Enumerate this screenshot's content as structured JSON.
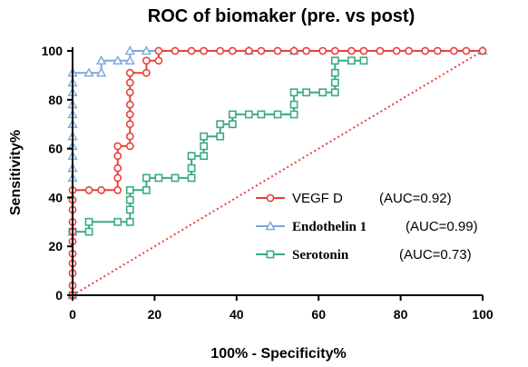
{
  "chart_data": {
    "type": "line",
    "title": "ROC of biomaker (pre. vs post)",
    "xlabel": "100% - Specificity%",
    "ylabel": "Sensitivity%",
    "xlim": [
      0,
      100
    ],
    "ylim": [
      0,
      100
    ],
    "xticks": [
      "0",
      "20",
      "40",
      "60",
      "80",
      "100"
    ],
    "yticks": [
      "0",
      "20",
      "40",
      "60",
      "80",
      "100"
    ],
    "grid": false,
    "legend_position": "bottom-right",
    "reference_line": {
      "x": [
        0,
        100
      ],
      "y": [
        0,
        100
      ],
      "style": "dotted",
      "color": "#e8413c"
    },
    "series": [
      {
        "name": "VEGF D",
        "auc_label": "(AUC=0.92)",
        "color": "#e8413c",
        "marker": "circle",
        "points": [
          [
            0,
            0
          ],
          [
            0,
            4
          ],
          [
            0,
            9
          ],
          [
            0,
            13
          ],
          [
            0,
            17
          ],
          [
            0,
            22
          ],
          [
            0,
            26
          ],
          [
            0,
            30
          ],
          [
            0,
            35
          ],
          [
            0,
            39
          ],
          [
            0,
            43
          ],
          [
            4,
            43
          ],
          [
            7,
            43
          ],
          [
            11,
            43
          ],
          [
            11,
            48
          ],
          [
            11,
            52
          ],
          [
            11,
            57
          ],
          [
            11,
            61
          ],
          [
            14,
            61
          ],
          [
            14,
            65
          ],
          [
            14,
            70
          ],
          [
            14,
            74
          ],
          [
            14,
            78
          ],
          [
            14,
            83
          ],
          [
            14,
            87
          ],
          [
            14,
            91
          ],
          [
            18,
            91
          ],
          [
            18,
            96
          ],
          [
            21,
            96
          ],
          [
            21,
            100
          ],
          [
            25,
            100
          ],
          [
            29,
            100
          ],
          [
            32,
            100
          ],
          [
            36,
            100
          ],
          [
            39,
            100
          ],
          [
            43,
            100
          ],
          [
            46,
            100
          ],
          [
            50,
            100
          ],
          [
            54,
            100
          ],
          [
            57,
            100
          ],
          [
            61,
            100
          ],
          [
            64,
            100
          ],
          [
            68,
            100
          ],
          [
            71,
            100
          ],
          [
            75,
            100
          ],
          [
            79,
            100
          ],
          [
            82,
            100
          ],
          [
            86,
            100
          ],
          [
            89,
            100
          ],
          [
            93,
            100
          ],
          [
            96,
            100
          ],
          [
            100,
            100
          ]
        ]
      },
      {
        "name": "Endothelin 1",
        "auc_label": "(AUC=0.99)",
        "color": "#7aa7dc",
        "marker": "triangle",
        "points": [
          [
            0,
            0
          ],
          [
            0,
            26
          ],
          [
            0,
            48
          ],
          [
            0,
            52
          ],
          [
            0,
            57
          ],
          [
            0,
            61
          ],
          [
            0,
            65
          ],
          [
            0,
            70
          ],
          [
            0,
            74
          ],
          [
            0,
            78
          ],
          [
            0,
            83
          ],
          [
            0,
            87
          ],
          [
            0,
            91
          ],
          [
            4,
            91
          ],
          [
            7,
            91
          ],
          [
            7,
            96
          ],
          [
            11,
            96
          ],
          [
            14,
            96
          ],
          [
            14,
            100
          ],
          [
            18,
            100
          ],
          [
            43,
            100
          ],
          [
            54,
            100
          ],
          [
            100,
            100
          ]
        ]
      },
      {
        "name": "Serotonin",
        "auc_label": "(AUC=0.73)",
        "color": "#3aab82",
        "marker": "square",
        "points": [
          [
            0,
            0
          ],
          [
            0,
            26
          ],
          [
            4,
            26
          ],
          [
            4,
            30
          ],
          [
            11,
            30
          ],
          [
            14,
            30
          ],
          [
            14,
            35
          ],
          [
            14,
            39
          ],
          [
            14,
            43
          ],
          [
            18,
            43
          ],
          [
            18,
            48
          ],
          [
            21,
            48
          ],
          [
            25,
            48
          ],
          [
            29,
            48
          ],
          [
            29,
            52
          ],
          [
            29,
            57
          ],
          [
            32,
            57
          ],
          [
            32,
            61
          ],
          [
            32,
            65
          ],
          [
            36,
            65
          ],
          [
            36,
            70
          ],
          [
            39,
            70
          ],
          [
            39,
            74
          ],
          [
            43,
            74
          ],
          [
            46,
            74
          ],
          [
            50,
            74
          ],
          [
            54,
            74
          ],
          [
            54,
            78
          ],
          [
            54,
            83
          ],
          [
            57,
            83
          ],
          [
            61,
            83
          ],
          [
            64,
            83
          ],
          [
            64,
            87
          ],
          [
            64,
            91
          ],
          [
            64,
            96
          ],
          [
            68,
            96
          ],
          [
            71,
            96
          ]
        ]
      }
    ]
  }
}
